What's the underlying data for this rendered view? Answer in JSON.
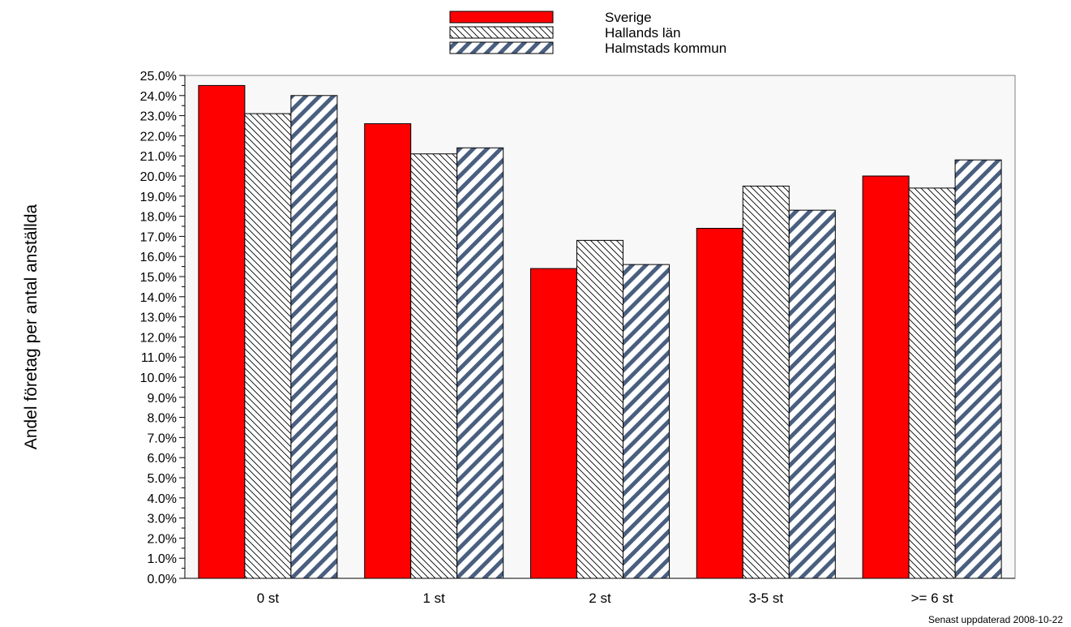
{
  "chart_data": {
    "type": "bar",
    "title": "",
    "xlabel": "",
    "ylabel": "Andel företag per antal anställda",
    "ylim": [
      0,
      25
    ],
    "yticks": [
      "0.0%",
      "1.0%",
      "2.0%",
      "3.0%",
      "4.0%",
      "5.0%",
      "6.0%",
      "7.0%",
      "8.0%",
      "9.0%",
      "10.0%",
      "11.0%",
      "12.0%",
      "13.0%",
      "14.0%",
      "15.0%",
      "16.0%",
      "17.0%",
      "18.0%",
      "19.0%",
      "20.0%",
      "21.0%",
      "22.0%",
      "23.0%",
      "24.0%",
      "25.0%"
    ],
    "categories": [
      "0 st",
      "1 st",
      "2 st",
      "3-5 st",
      ">= 6 st"
    ],
    "series": [
      {
        "name": "Sverige",
        "values": [
          24.5,
          22.6,
          15.4,
          17.4,
          20.0
        ]
      },
      {
        "name": "Hallands län",
        "values": [
          23.1,
          21.1,
          16.8,
          19.5,
          19.4
        ]
      },
      {
        "name": "Halmstads kommun",
        "values": [
          24.0,
          21.4,
          15.6,
          18.3,
          20.8
        ]
      }
    ],
    "legend_position": "top-center",
    "grid": false,
    "colors": {
      "sverige": "#ff0000",
      "hallands_hatch": "#000000",
      "halmstad_stripe": "#4a5f80",
      "plot_background": "#f8f8f8"
    },
    "footnote": "Senast uppdaterad 2008-10-22"
  }
}
